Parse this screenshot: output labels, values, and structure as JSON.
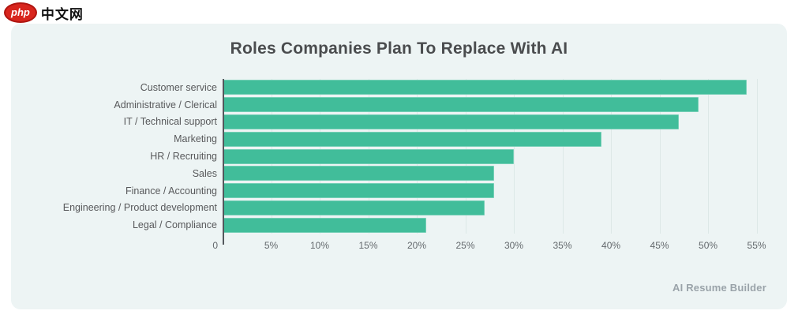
{
  "logo": {
    "badge": "php",
    "text": "中文网"
  },
  "chart_data": {
    "type": "bar",
    "orientation": "horizontal",
    "title": "Roles Companies Plan To Replace With AI",
    "categories": [
      "Customer service",
      "Administrative / Clerical",
      "IT / Technical support",
      "Marketing",
      "HR / Recruiting",
      "Sales",
      "Finance / Accounting",
      "Engineering / Product development",
      "Legal / Compliance"
    ],
    "values": [
      54,
      49,
      47,
      39,
      30,
      28,
      28,
      27,
      21
    ],
    "unit": "%",
    "x_ticks": [
      {
        "label": "0",
        "value": 0
      },
      {
        "label": "5%",
        "value": 5
      },
      {
        "label": "10%",
        "value": 10
      },
      {
        "label": "15%",
        "value": 15
      },
      {
        "label": "20%",
        "value": 20
      },
      {
        "label": "25%",
        "value": 25
      },
      {
        "label": "30%",
        "value": 30
      },
      {
        "label": "35%",
        "value": 35
      },
      {
        "label": "40%",
        "value": 40
      },
      {
        "label": "45%",
        "value": 45
      },
      {
        "label": "50%",
        "value": 50
      },
      {
        "label": "55%",
        "value": 55
      }
    ],
    "xlim": [
      0,
      56.5
    ],
    "grid": "vertical",
    "legend": "none",
    "bar_color": "#41bd9a",
    "source": "AI Resume Builder"
  },
  "colors": {
    "card_background": "#edf4f4",
    "bar": "#41bd9a",
    "gridline": "#dde8e7",
    "axis_line": "#53585c",
    "title_text": "#4a4c4e",
    "label_text": "#58595b",
    "tick_text": "#64696d",
    "source_text": "#9aa3a9",
    "logo_red": "#d8251d"
  }
}
